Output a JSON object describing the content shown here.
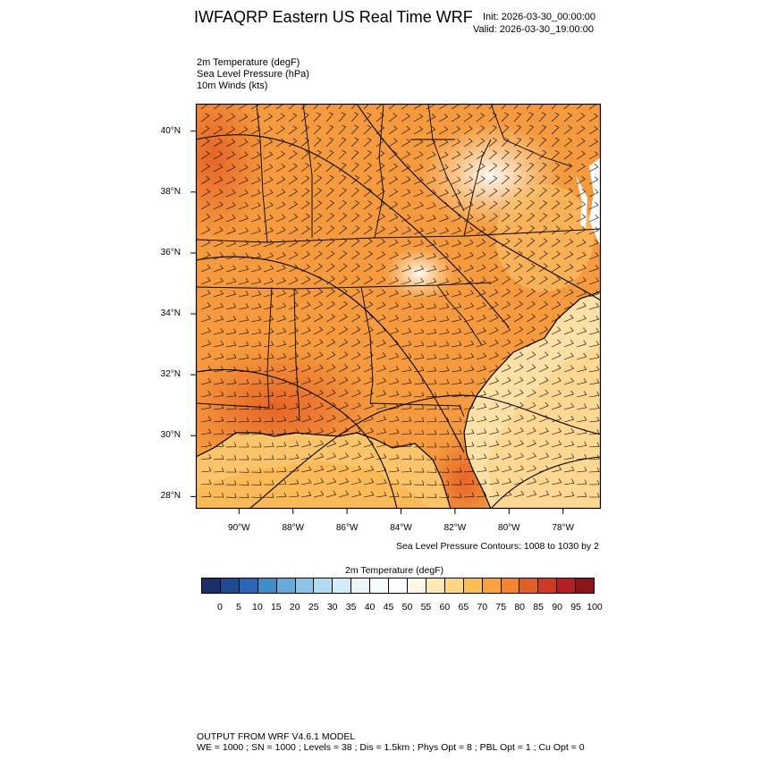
{
  "header": {
    "title": "IWFAQRP Eastern US Real Time WRF",
    "init": "Init: 2026-03-30_00:00:00",
    "valid": "Valid: 2026-03-30_19:00:00"
  },
  "fields": [
    "2m Temperature   (degF)",
    "Sea Level Pressure   (hPa)",
    "10m Winds   (kts)"
  ],
  "map": {
    "lat_ticks": [
      "40°N",
      "38°N",
      "36°N",
      "34°N",
      "32°N",
      "30°N",
      "28°N"
    ],
    "lon_ticks": [
      "90°W",
      "88°W",
      "86°W",
      "84°W",
      "82°W",
      "80°W",
      "78°W"
    ],
    "lat_range": [
      27.6,
      40.9
    ],
    "lon_range": [
      -91.6,
      -76.6
    ]
  },
  "slp_note": "Sea Level Pressure Contours: 1008 to 1030 by 2",
  "colorbar": {
    "title": "2m Temperature  (degF)",
    "labels": [
      "0",
      "5",
      "10",
      "15",
      "20",
      "25",
      "30",
      "35",
      "40",
      "45",
      "50",
      "55",
      "60",
      "65",
      "70",
      "75",
      "80",
      "85",
      "90",
      "95",
      "100"
    ],
    "colors": [
      "#1a2f6b",
      "#1e4a95",
      "#2b66b6",
      "#3f8ecb",
      "#64abda",
      "#8bc4e6",
      "#b0dbf1",
      "#d4ecf7",
      "#ebf6fb",
      "#f8fcfe",
      "#ffffff",
      "#fff8e6",
      "#ffe9b3",
      "#fdd583",
      "#fbbe56",
      "#f8a23d",
      "#f2842e",
      "#e45f25",
      "#cf3a22",
      "#b41f22",
      "#8c1319"
    ]
  },
  "footer": {
    "line1": "OUTPUT FROM WRF V4.6.1 MODEL",
    "line2": "WE = 1000 ; SN = 1000 ; Levels = 38 ; Dis = 1.5km ; Phys Opt = 8 ; PBL Opt = 1 ; Cu Opt = 0"
  }
}
